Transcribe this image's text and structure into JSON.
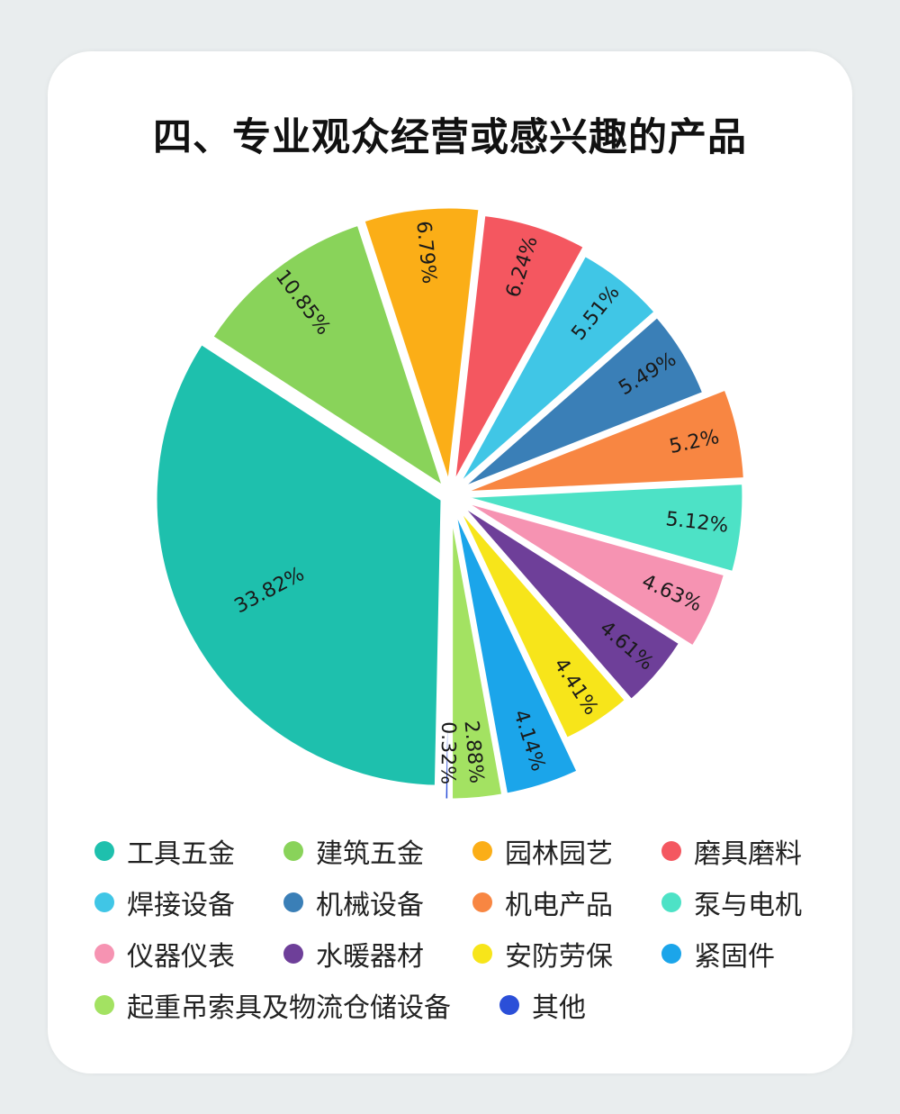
{
  "title": "四、专业观众经营或感兴趣的产品",
  "chart_data": {
    "type": "pie",
    "title": "四、专业观众经营或感兴趣的产品",
    "unit": "%",
    "slices": [
      {
        "label": "工具五金",
        "value": 33.82,
        "display": "33.82%",
        "color": "#1ec0ad"
      },
      {
        "label": "建筑五金",
        "value": 10.85,
        "display": "10.85%",
        "color": "#89d35a"
      },
      {
        "label": "园林园艺",
        "value": 6.79,
        "display": "6.79%",
        "color": "#fbae17"
      },
      {
        "label": "磨具磨料",
        "value": 6.24,
        "display": "6.24%",
        "color": "#f45760"
      },
      {
        "label": "焊接设备",
        "value": 5.51,
        "display": "5.51%",
        "color": "#40c6e6"
      },
      {
        "label": "机械设备",
        "value": 5.49,
        "display": "5.49%",
        "color": "#3a7fb7"
      },
      {
        "label": "机电产品",
        "value": 5.2,
        "display": "5.2%",
        "color": "#f88642"
      },
      {
        "label": "泵与电机",
        "value": 5.12,
        "display": "5.12%",
        "color": "#4de2c6"
      },
      {
        "label": "仪器仪表",
        "value": 4.63,
        "display": "4.63%",
        "color": "#f693b2"
      },
      {
        "label": "水暖器材",
        "value": 4.61,
        "display": "4.61%",
        "color": "#6e3f99"
      },
      {
        "label": "安防劳保",
        "value": 4.41,
        "display": "4.41%",
        "color": "#f7e51a"
      },
      {
        "label": "紧固件",
        "value": 4.14,
        "display": "4.14%",
        "color": "#1ba5ea"
      },
      {
        "label": "起重吊索具及物流仓储设备",
        "value": 2.88,
        "display": "2.88%",
        "color": "#a3e262"
      },
      {
        "label": "其他",
        "value": 0.32,
        "display": "0.32%",
        "color": "#2b4fd8"
      }
    ],
    "legend_placement": "bottom"
  }
}
